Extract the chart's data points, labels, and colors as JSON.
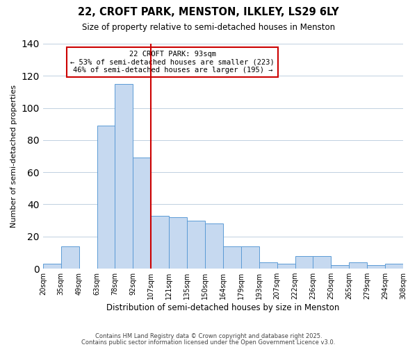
{
  "title": "22, CROFT PARK, MENSTON, ILKLEY, LS29 6LY",
  "subtitle": "Size of property relative to semi-detached houses in Menston",
  "xlabel": "Distribution of semi-detached houses by size in Menston",
  "ylabel": "Number of semi-detached properties",
  "bin_labels": [
    "20sqm",
    "35sqm",
    "49sqm",
    "63sqm",
    "78sqm",
    "92sqm",
    "107sqm",
    "121sqm",
    "135sqm",
    "150sqm",
    "164sqm",
    "179sqm",
    "193sqm",
    "207sqm",
    "222sqm",
    "236sqm",
    "250sqm",
    "265sqm",
    "279sqm",
    "294sqm",
    "308sqm"
  ],
  "bar_values": [
    3,
    14,
    0,
    89,
    115,
    69,
    33,
    32,
    30,
    28,
    14,
    14,
    4,
    3,
    8,
    8,
    2,
    4,
    2,
    3
  ],
  "bar_color": "#c6d9f0",
  "bar_edge_color": "#5b9bd5",
  "vline_color": "#cc0000",
  "vline_bin_index": 5,
  "annotation_title": "22 CROFT PARK: 93sqm",
  "annotation_line1": "← 53% of semi-detached houses are smaller (223)",
  "annotation_line2": "46% of semi-detached houses are larger (195) →",
  "annotation_box_color": "#ffffff",
  "annotation_box_edge": "#cc0000",
  "ylim": [
    0,
    140
  ],
  "yticks": [
    0,
    20,
    40,
    60,
    80,
    100,
    120,
    140
  ],
  "footer1": "Contains HM Land Registry data © Crown copyright and database right 2025.",
  "footer2": "Contains public sector information licensed under the Open Government Licence v3.0.",
  "background_color": "#ffffff",
  "grid_color": "#c0d0e0"
}
